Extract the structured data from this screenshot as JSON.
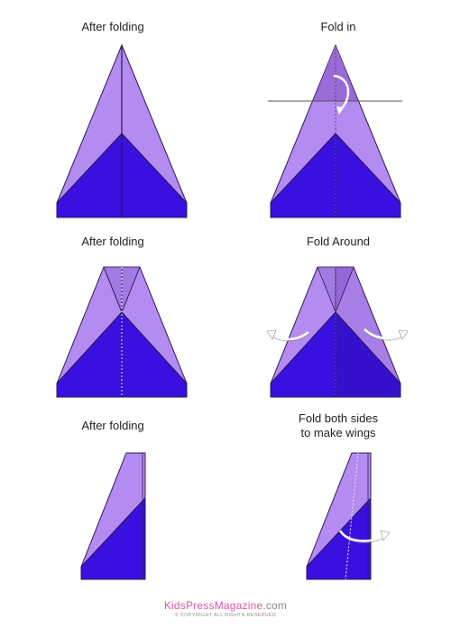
{
  "colors": {
    "light_purple": "#b48bf0",
    "mid_purple": "#a77de6",
    "dark_blue": "#3a10e0",
    "outline": "#2b1a55",
    "fold_line": "#555555"
  },
  "steps": [
    {
      "id": "step1",
      "caption": [
        "After folding"
      ]
    },
    {
      "id": "step2",
      "caption": [
        "Fold in"
      ]
    },
    {
      "id": "step3",
      "caption": [
        "After folding"
      ]
    },
    {
      "id": "step4",
      "caption": [
        "Fold Around"
      ]
    },
    {
      "id": "step5",
      "caption": [
        "After folding"
      ]
    },
    {
      "id": "step6",
      "caption": [
        "Fold both sides",
        "to make wings"
      ]
    }
  ],
  "footer": {
    "brand_kids": "Kids",
    "brand_press": "Press",
    "brand_magazine": "Magazine",
    "brand_dotcom": ".com",
    "copyright": "© COPYRIGHT ALL RIGHTS RESERVED"
  }
}
